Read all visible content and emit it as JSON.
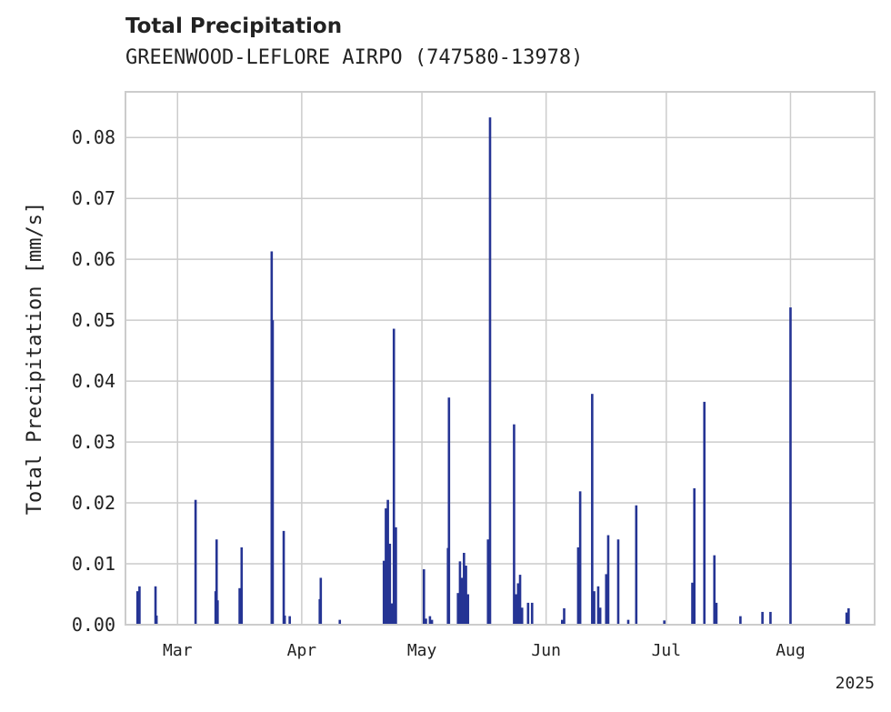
{
  "chart_data": {
    "type": "bar",
    "title": "Total Precipitation",
    "subtitle": "GREENWOOD-LEFLORE AIRPO (747580-13978)",
    "ylabel": "Total Precipitation [mm/s]",
    "xlabel": "",
    "ylim": [
      0,
      0.0875
    ],
    "xlim": [
      "2025-02-16",
      "2025-08-22"
    ],
    "year_label": "2025",
    "yticks": [
      0.0,
      0.01,
      0.02,
      0.03,
      0.04,
      0.05,
      0.06,
      0.07,
      0.08
    ],
    "ytick_labels": [
      "0.00",
      "0.01",
      "0.02",
      "0.03",
      "0.04",
      "0.05",
      "0.06",
      "0.07",
      "0.08"
    ],
    "xticks": [
      {
        "date": "2025-03-01",
        "label": "Mar"
      },
      {
        "date": "2025-04-01",
        "label": "Apr"
      },
      {
        "date": "2025-05-01",
        "label": "May"
      },
      {
        "date": "2025-06-01",
        "label": "Jun"
      },
      {
        "date": "2025-07-01",
        "label": "Jul"
      },
      {
        "date": "2025-08-01",
        "label": "Aug"
      }
    ],
    "grid": true,
    "bar_color": "#253494",
    "x": [
      "2025-02-19 00:00",
      "2025-02-19 12:00",
      "2025-02-23 12:00",
      "2025-02-23 18:00",
      "2025-03-05 12:00",
      "2025-03-10 12:00",
      "2025-03-10 18:00",
      "2025-03-11 00:00",
      "2025-03-16 12:00",
      "2025-03-17 00:00",
      "2025-03-24 12:00",
      "2025-03-24 18:00",
      "2025-03-27 12:00",
      "2025-03-27 18:00",
      "2025-03-29 00:00",
      "2025-04-05 12:00",
      "2025-04-05 18:00",
      "2025-04-10 12:00",
      "2025-04-21 12:00",
      "2025-04-22 00:00",
      "2025-04-22 12:00",
      "2025-04-23 00:00",
      "2025-04-23 12:00",
      "2025-04-24 00:00",
      "2025-04-24 12:00",
      "2025-05-01 12:00",
      "2025-05-02 00:00",
      "2025-05-03 00:00",
      "2025-05-03 12:00",
      "2025-05-07 12:00",
      "2025-05-07 18:00",
      "2025-05-10 00:00",
      "2025-05-10 12:00",
      "2025-05-11 00:00",
      "2025-05-11 12:00",
      "2025-05-12 00:00",
      "2025-05-12 12:00",
      "2025-05-17 12:00",
      "2025-05-18 00:00",
      "2025-05-24 00:00",
      "2025-05-24 12:00",
      "2025-05-25 00:00",
      "2025-05-25 12:00",
      "2025-05-26 00:00",
      "2025-05-27 12:00",
      "2025-05-28 12:00",
      "2025-06-05 00:00",
      "2025-06-05 12:00",
      "2025-06-09 00:00",
      "2025-06-09 12:00",
      "2025-06-12 12:00",
      "2025-06-13 00:00",
      "2025-06-14 00:00",
      "2025-06-14 12:00",
      "2025-06-16 00:00",
      "2025-06-16 12:00",
      "2025-06-19 00:00",
      "2025-06-21 12:00",
      "2025-06-23 12:00",
      "2025-06-30 12:00",
      "2025-07-07 12:00",
      "2025-07-08 00:00",
      "2025-07-10 12:00",
      "2025-07-13 00:00",
      "2025-07-13 12:00",
      "2025-07-19 12:00",
      "2025-07-25 00:00",
      "2025-07-27 00:00",
      "2025-08-01 00:00",
      "2025-08-15 00:00",
      "2025-08-15 12:00"
    ],
    "values": [
      0.0055,
      0.0063,
      0.0063,
      0.0015,
      0.0205,
      0.0055,
      0.014,
      0.004,
      0.006,
      0.0127,
      0.0613,
      0.05,
      0.0154,
      0.0015,
      0.0014,
      0.0042,
      0.0077,
      0.0008,
      0.0105,
      0.0191,
      0.0205,
      0.0133,
      0.0035,
      0.0486,
      0.016,
      0.0091,
      0.001,
      0.0014,
      0.0008,
      0.0126,
      0.0373,
      0.0052,
      0.0104,
      0.0077,
      0.0118,
      0.0097,
      0.005,
      0.014,
      0.0833,
      0.0329,
      0.005,
      0.0068,
      0.0082,
      0.0028,
      0.0036,
      0.0036,
      0.0008,
      0.0027,
      0.0127,
      0.0219,
      0.0379,
      0.0055,
      0.0063,
      0.0028,
      0.0083,
      0.0147,
      0.014,
      0.0008,
      0.0196,
      0.0007,
      0.0069,
      0.0224,
      0.0366,
      0.0114,
      0.0036,
      0.0014,
      0.0021,
      0.0021,
      0.0521,
      0.002,
      0.0027
    ]
  }
}
